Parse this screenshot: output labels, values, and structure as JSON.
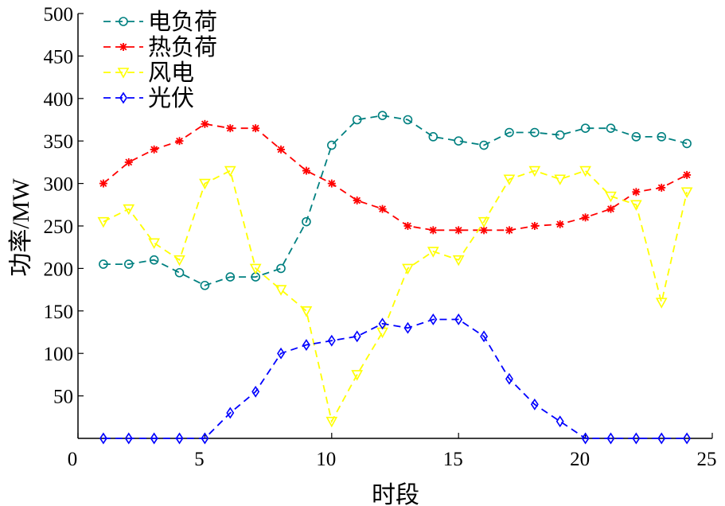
{
  "chart_data": {
    "type": "line",
    "title": "",
    "xlabel": "时段",
    "ylabel": "功率/MW",
    "xlim": [
      0,
      25
    ],
    "ylim": [
      0,
      500
    ],
    "xticks": [
      0,
      5,
      10,
      15,
      20,
      25
    ],
    "yticks": [
      50,
      100,
      150,
      200,
      250,
      300,
      350,
      400,
      450,
      500
    ],
    "grid": false,
    "legend_position": "top-left",
    "x": [
      1,
      2,
      3,
      4,
      5,
      6,
      7,
      8,
      9,
      10,
      11,
      12,
      13,
      14,
      15,
      16,
      17,
      18,
      19,
      20,
      21,
      22,
      23,
      24
    ],
    "series": [
      {
        "name": "电负荷",
        "color": "#008080",
        "marker": "circle",
        "values": [
          205,
          205,
          210,
          195,
          180,
          190,
          190,
          200,
          255,
          345,
          375,
          380,
          375,
          355,
          350,
          345,
          360,
          360,
          357,
          365,
          365,
          355,
          355,
          347
        ]
      },
      {
        "name": "热负荷",
        "color": "#ff0000",
        "marker": "star",
        "values": [
          300,
          325,
          340,
          350,
          370,
          365,
          365,
          340,
          315,
          300,
          280,
          270,
          250,
          245,
          245,
          245,
          245,
          250,
          252,
          260,
          270,
          290,
          295,
          310
        ]
      },
      {
        "name": "风电",
        "color": "#ffff00",
        "marker": "triangle-down",
        "values": [
          255,
          270,
          230,
          210,
          300,
          315,
          200,
          175,
          150,
          20,
          75,
          125,
          200,
          220,
          210,
          255,
          305,
          315,
          305,
          315,
          285,
          275,
          160,
          290
        ]
      },
      {
        "name": "光伏",
        "color": "#0000ff",
        "marker": "diamond",
        "values": [
          0,
          0,
          0,
          0,
          0,
          30,
          55,
          100,
          110,
          115,
          120,
          135,
          130,
          140,
          140,
          120,
          70,
          40,
          20,
          0,
          0,
          0,
          0,
          0
        ]
      }
    ]
  }
}
